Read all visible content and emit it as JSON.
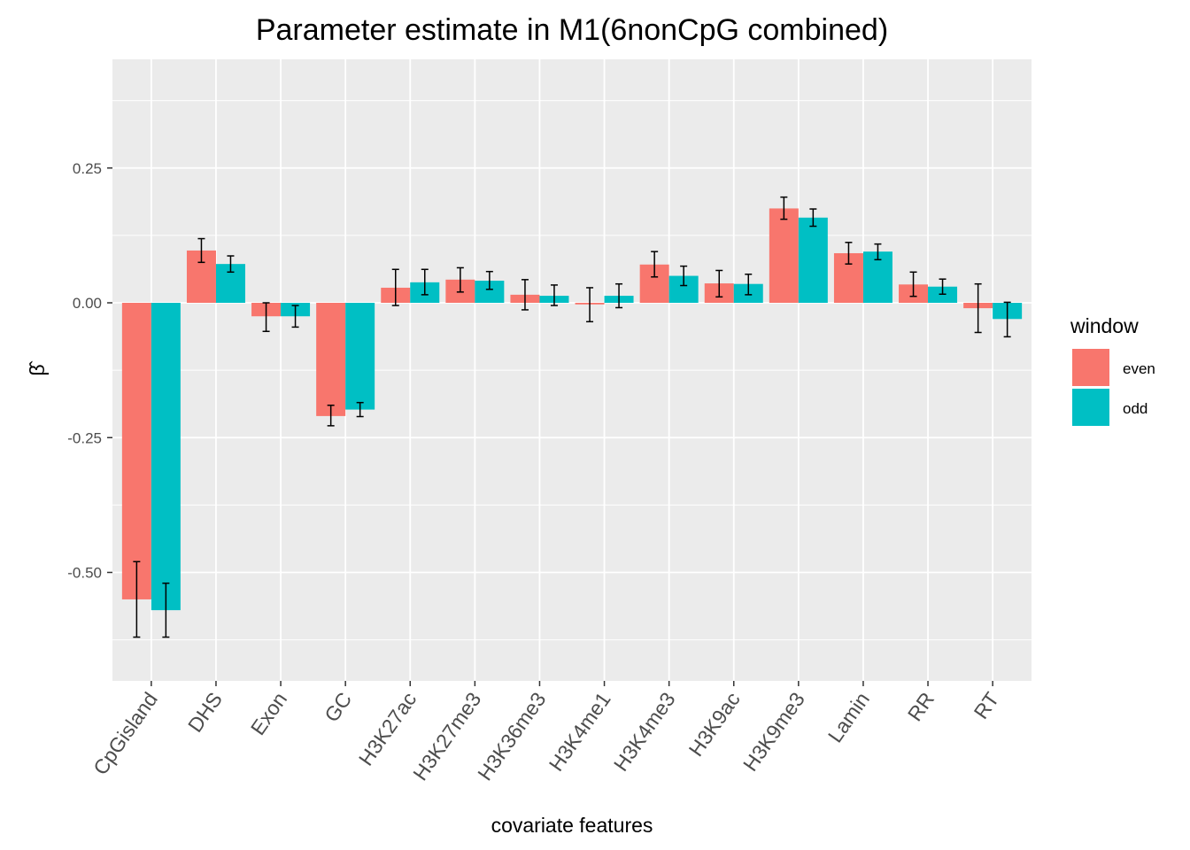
{
  "chart_data": {
    "type": "bar",
    "title": "Parameter estimate in M1(6nonCpG combined)",
    "xlabel": "covariate features",
    "ylabel": "β̂",
    "ylim": [
      -0.7,
      0.45
    ],
    "yticks": [
      0.25,
      0.0,
      -0.25,
      -0.5
    ],
    "ytick_labels": [
      "0.25",
      "0.00",
      "-0.25",
      "-0.50"
    ],
    "grid": true,
    "legend": {
      "title": "window",
      "position": "right"
    },
    "categories": [
      "CpGisland",
      "DHS",
      "Exon",
      "GC",
      "H3K27ac",
      "H3K27me3",
      "H3K36me3",
      "H3K4me1",
      "H3K4me3",
      "H3K9ac",
      "H3K9me3",
      "Lamin",
      "RR",
      "RT"
    ],
    "series": [
      {
        "name": "even",
        "color": "#F8766D",
        "values": [
          -0.55,
          0.097,
          -0.025,
          -0.21,
          0.028,
          0.043,
          0.015,
          -0.003,
          0.071,
          0.036,
          0.175,
          0.092,
          0.034,
          -0.01
        ],
        "error_low": [
          -0.62,
          0.075,
          -0.053,
          -0.228,
          -0.005,
          0.02,
          -0.013,
          -0.035,
          0.048,
          0.011,
          0.155,
          0.072,
          0.012,
          -0.055
        ],
        "error_high": [
          -0.48,
          0.119,
          0.0,
          -0.19,
          0.062,
          0.065,
          0.043,
          0.028,
          0.095,
          0.06,
          0.196,
          0.112,
          0.057,
          0.035
        ]
      },
      {
        "name": "odd",
        "color": "#00BFC4",
        "values": [
          -0.57,
          0.072,
          -0.025,
          -0.198,
          0.038,
          0.041,
          0.013,
          0.013,
          0.05,
          0.035,
          0.158,
          0.095,
          0.03,
          -0.03
        ],
        "error_low": [
          -0.62,
          0.057,
          -0.045,
          -0.211,
          0.015,
          0.025,
          -0.005,
          -0.009,
          0.032,
          0.015,
          0.142,
          0.08,
          0.016,
          -0.063
        ],
        "error_high": [
          -0.52,
          0.087,
          -0.005,
          -0.185,
          0.062,
          0.058,
          0.033,
          0.035,
          0.068,
          0.053,
          0.174,
          0.109,
          0.044,
          0.001
        ]
      }
    ]
  }
}
